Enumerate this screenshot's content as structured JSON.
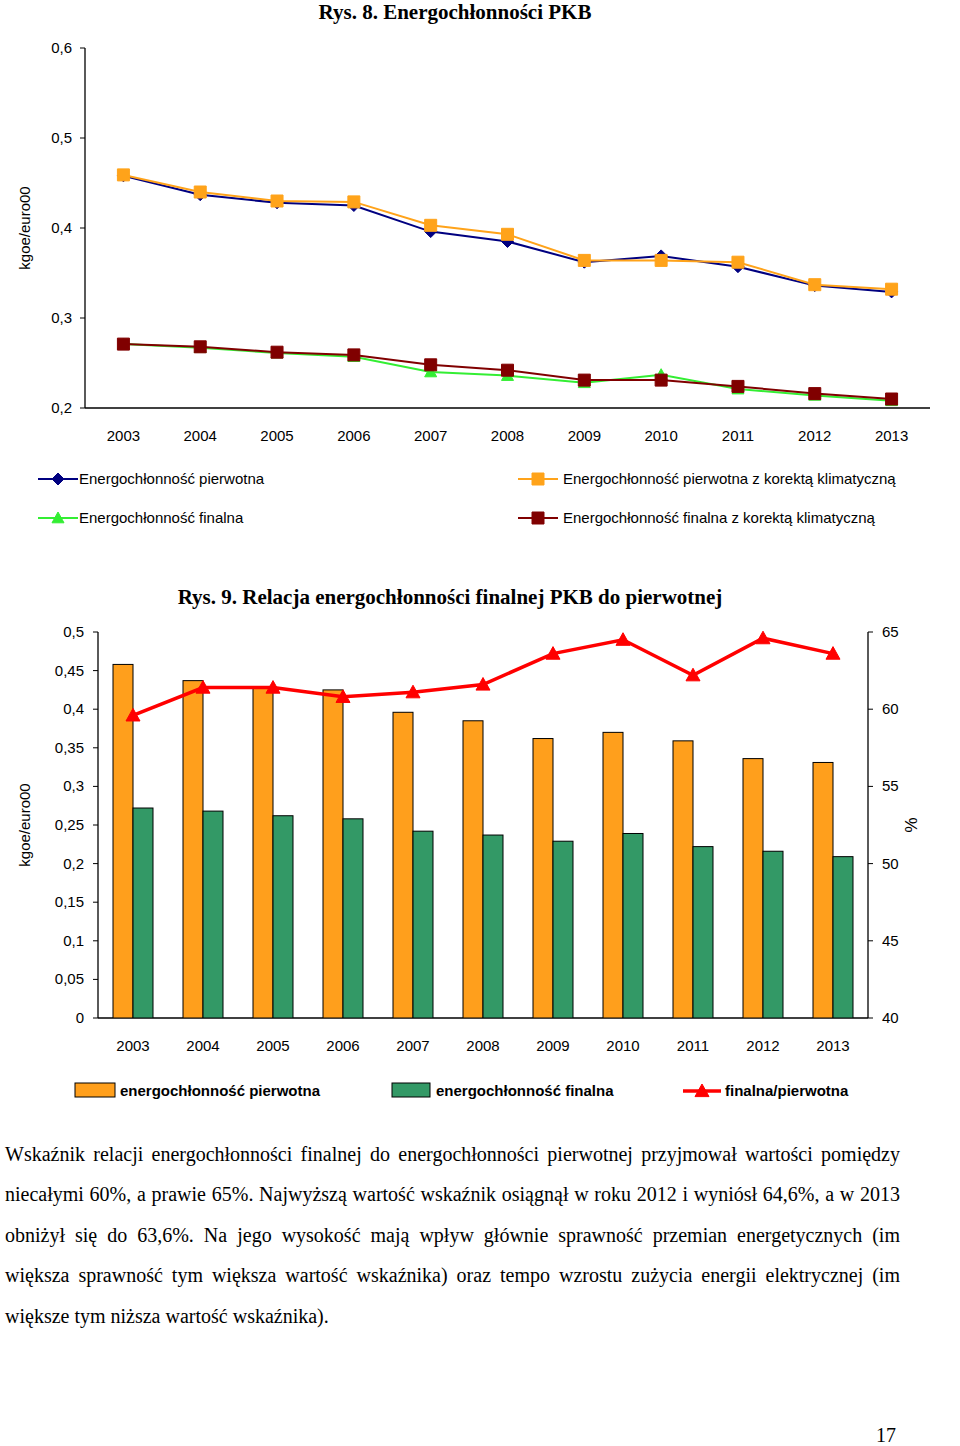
{
  "chart_data": [
    {
      "type": "line",
      "title": "Rys. 8. Energochłonności PKB",
      "y_label": "kgoe/euro00",
      "categories": [
        "2003",
        "2004",
        "2005",
        "2006",
        "2007",
        "2008",
        "2009",
        "2010",
        "2011",
        "2012",
        "2013"
      ],
      "ylim": [
        0.2,
        0.6
      ],
      "yticks": [
        {
          "value": 0.2,
          "label": "0,2"
        },
        {
          "value": 0.3,
          "label": "0,3"
        },
        {
          "value": 0.4,
          "label": "0,4"
        },
        {
          "value": 0.5,
          "label": "0,5"
        },
        {
          "value": 0.6,
          "label": "0,6"
        }
      ],
      "grid": false,
      "legend": "bottom",
      "series": [
        {
          "name": "Energochłonność pierwotna",
          "color": "#000080",
          "marker": "diamond",
          "values": [
            0.458,
            0.437,
            0.428,
            0.425,
            0.396,
            0.385,
            0.362,
            0.369,
            0.357,
            0.336,
            0.329
          ]
        },
        {
          "name": "Energochłonność pierwotna z korektą klimatyczną",
          "color": "#ffa31a",
          "marker": "square",
          "values": [
            0.459,
            0.44,
            0.43,
            0.429,
            0.403,
            0.393,
            0.364,
            0.364,
            0.362,
            0.337,
            0.332
          ]
        },
        {
          "name": "Energochłonność finalna",
          "color": "#33ee33",
          "marker": "triangle",
          "values": [
            0.271,
            0.267,
            0.261,
            0.257,
            0.24,
            0.236,
            0.228,
            0.237,
            0.221,
            0.214,
            0.208
          ]
        },
        {
          "name": "Energochłonność finalna z korektą klimatyczną",
          "color": "#800000",
          "marker": "square",
          "values": [
            0.271,
            0.268,
            0.262,
            0.259,
            0.248,
            0.242,
            0.231,
            0.231,
            0.224,
            0.216,
            0.21
          ]
        }
      ]
    },
    {
      "type": "bar",
      "title": "Rys. 9. Relacja energochłonności finalnej PKB do pierwotnej",
      "y_label": "kgoe/euro00",
      "y2_label": "%",
      "categories": [
        "2003",
        "2004",
        "2005",
        "2006",
        "2007",
        "2008",
        "2009",
        "2010",
        "2011",
        "2012",
        "2013"
      ],
      "ylim": [
        0,
        0.5
      ],
      "yticks": [
        0,
        {
          "value": 0.05,
          "label": "0,05"
        },
        {
          "value": 0.1,
          "label": "0,1"
        },
        {
          "value": 0.15,
          "label": "0,15"
        },
        {
          "value": 0.2,
          "label": "0,2"
        },
        {
          "value": 0.25,
          "label": "0,25"
        },
        {
          "value": 0.3,
          "label": "0,3"
        },
        {
          "value": 0.35,
          "label": "0,35"
        },
        {
          "value": 0.4,
          "label": "0,4"
        },
        {
          "value": 0.45,
          "label": "0,45"
        },
        {
          "value": 0.5,
          "label": "0,5"
        }
      ],
      "y2lim": [
        40,
        65
      ],
      "y2ticks": [
        40,
        45,
        50,
        55,
        60,
        65
      ],
      "grid": false,
      "legend": "bottom",
      "series": [
        {
          "name": "energochłonność pierwotna",
          "color": "#ff9f1c",
          "type": "bar",
          "values": [
            0.458,
            0.437,
            0.428,
            0.425,
            0.396,
            0.385,
            0.362,
            0.37,
            0.359,
            0.336,
            0.331
          ]
        },
        {
          "name": "energochłonność finalna",
          "color": "#339966",
          "type": "bar",
          "values": [
            0.272,
            0.268,
            0.262,
            0.258,
            0.242,
            0.237,
            0.229,
            0.239,
            0.222,
            0.216,
            0.209
          ]
        },
        {
          "name": "finalna/pierwotna",
          "color": "#ff0000",
          "type": "line",
          "marker": "triangle",
          "axis": "y2",
          "values": [
            59.6,
            61.4,
            61.4,
            60.8,
            61.1,
            61.6,
            63.6,
            64.5,
            62.2,
            64.6,
            63.6
          ]
        }
      ]
    }
  ],
  "paragraph": "Wskaźnik relacji energochłonności finalnej do energochłonności pierwotnej przyjmował wartości pomiędzy niecałymi 60%, a prawie 65%. Najwyższą wartość wskaźnik osiągnął w roku 2012 i wyniósł 64,6%, a w 2013 obniżył się do 63,6%. Na jego wysokość mają wpływ głównie sprawność przemian energetycznych (im większa sprawność tym większa wartość wskaźnika) oraz tempo wzrostu zużycia energii elektrycznej (im większe tym niższa wartość wskaźnika).",
  "page_number": 17
}
